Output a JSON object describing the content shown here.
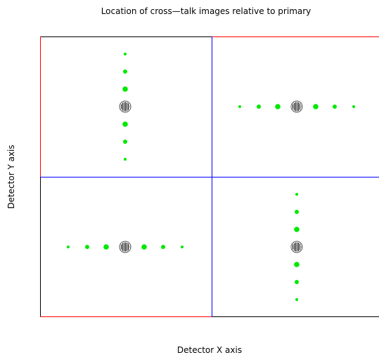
{
  "title": "Location of cross—talk images relative to primary",
  "x_label": "Detector X axis",
  "y_label": "Detector Y axis"
}
